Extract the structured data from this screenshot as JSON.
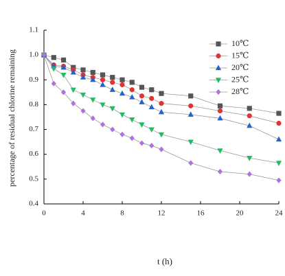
{
  "chart_data": {
    "type": "line",
    "xlabel": "t (h)",
    "ylabel": "percentage of residual chlorine remaining",
    "x": [
      0,
      1,
      2,
      3,
      4,
      5,
      6,
      7,
      8,
      9,
      10,
      11,
      12,
      15,
      18,
      21,
      24
    ],
    "series": [
      {
        "name": "10℃",
        "color": "#555555",
        "marker": "square",
        "values": [
          1.0,
          0.99,
          0.98,
          0.95,
          0.94,
          0.93,
          0.92,
          0.91,
          0.9,
          0.89,
          0.87,
          0.86,
          0.845,
          0.835,
          0.795,
          0.785,
          0.765
        ]
      },
      {
        "name": "15℃",
        "color": "#e03333",
        "marker": "circle",
        "values": [
          1.0,
          0.96,
          0.955,
          0.94,
          0.92,
          0.91,
          0.9,
          0.89,
          0.88,
          0.86,
          0.835,
          0.825,
          0.805,
          0.795,
          0.775,
          0.755,
          0.725
        ]
      },
      {
        "name": "20℃",
        "color": "#2463cc",
        "marker": "triangle-up",
        "values": [
          1.0,
          0.955,
          0.95,
          0.93,
          0.91,
          0.9,
          0.88,
          0.86,
          0.845,
          0.83,
          0.81,
          0.79,
          0.77,
          0.76,
          0.745,
          0.715,
          0.66
        ]
      },
      {
        "name": "25℃",
        "color": "#22bb66",
        "marker": "triangle-down",
        "values": [
          1.0,
          0.945,
          0.92,
          0.86,
          0.84,
          0.82,
          0.8,
          0.785,
          0.76,
          0.74,
          0.72,
          0.7,
          0.68,
          0.65,
          0.615,
          0.585,
          0.565
        ]
      },
      {
        "name": "28℃",
        "color": "#b070e0",
        "marker": "diamond",
        "values": [
          1.0,
          0.885,
          0.85,
          0.805,
          0.775,
          0.745,
          0.72,
          0.7,
          0.68,
          0.665,
          0.645,
          0.635,
          0.62,
          0.565,
          0.53,
          0.52,
          0.495
        ]
      }
    ],
    "xlim": [
      0,
      24
    ],
    "xticks": [
      0,
      4,
      8,
      12,
      16,
      20,
      24
    ],
    "ylim": [
      0.4,
      1.1
    ],
    "yticks": [
      0.4,
      0.5,
      0.6,
      0.7,
      0.8,
      0.9,
      {
        "value": 1,
        "label": "1.0"
      },
      1.1
    ],
    "grid": false,
    "legend": "upper-right"
  }
}
